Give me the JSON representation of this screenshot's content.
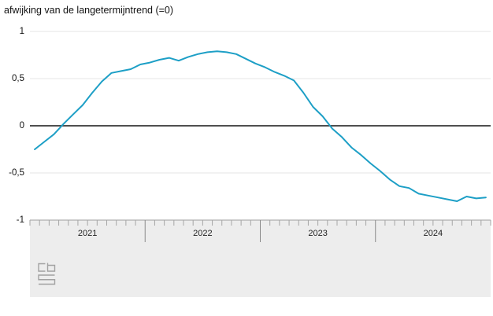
{
  "title": "afwijking van de langetermijntrend (=0)",
  "colors": {
    "line": "#1d9fc6",
    "zero_line": "#4f4f4f",
    "gridline": "#e4e4e4",
    "axis_band": "#ededed",
    "axis_line": "#9e9e9e",
    "minor_tick": "#a6a6a6",
    "major_tick": "#8a8a8a",
    "logo": "#a2a2a2",
    "text": "#121212"
  },
  "chart_data": {
    "type": "line",
    "title": "afwijking van de langetermijntrend (=0)",
    "grid": "horizontal",
    "legend": "none",
    "zero_line": true,
    "ylim": [
      -1,
      1
    ],
    "y_ticks": {
      "labels": [
        "1",
        "0,5",
        "0",
        "-0,5",
        "-1"
      ],
      "values": [
        1,
        0.5,
        0,
        -0.5,
        -1
      ]
    },
    "year_labels": [
      "2021",
      "2022",
      "2023",
      "2024"
    ],
    "x": [
      "2021-01",
      "2021-02",
      "2021-03",
      "2021-04",
      "2021-05",
      "2021-06",
      "2021-07",
      "2021-08",
      "2021-09",
      "2021-10",
      "2021-11",
      "2021-12",
      "2022-01",
      "2022-02",
      "2022-03",
      "2022-04",
      "2022-05",
      "2022-06",
      "2022-07",
      "2022-08",
      "2022-09",
      "2022-10",
      "2022-11",
      "2022-12",
      "2023-01",
      "2023-02",
      "2023-03",
      "2023-04",
      "2023-05",
      "2023-06",
      "2023-07",
      "2023-08",
      "2023-09",
      "2023-10",
      "2023-11",
      "2023-12",
      "2024-01",
      "2024-02",
      "2024-03",
      "2024-04",
      "2024-05",
      "2024-06",
      "2024-07",
      "2024-08",
      "2024-09",
      "2024-10",
      "2024-11",
      "2024-12"
    ],
    "series": [
      {
        "name": "afwijking van de langetermijntrend",
        "values": [
          -0.25,
          -0.17,
          -0.09,
          0.02,
          0.12,
          0.22,
          0.35,
          0.47,
          0.56,
          0.58,
          0.6,
          0.65,
          0.67,
          0.7,
          0.72,
          0.69,
          0.73,
          0.76,
          0.78,
          0.79,
          0.78,
          0.76,
          0.71,
          0.66,
          0.62,
          0.57,
          0.53,
          0.48,
          0.35,
          0.2,
          0.1,
          -0.03,
          -0.12,
          -0.23,
          -0.31,
          -0.4,
          -0.48,
          -0.57,
          -0.64,
          -0.66,
          -0.72,
          -0.74,
          -0.76,
          -0.78,
          -0.8,
          -0.75,
          -0.77,
          -0.76
        ]
      }
    ]
  },
  "footer": {
    "logo": "cbs-logo"
  }
}
